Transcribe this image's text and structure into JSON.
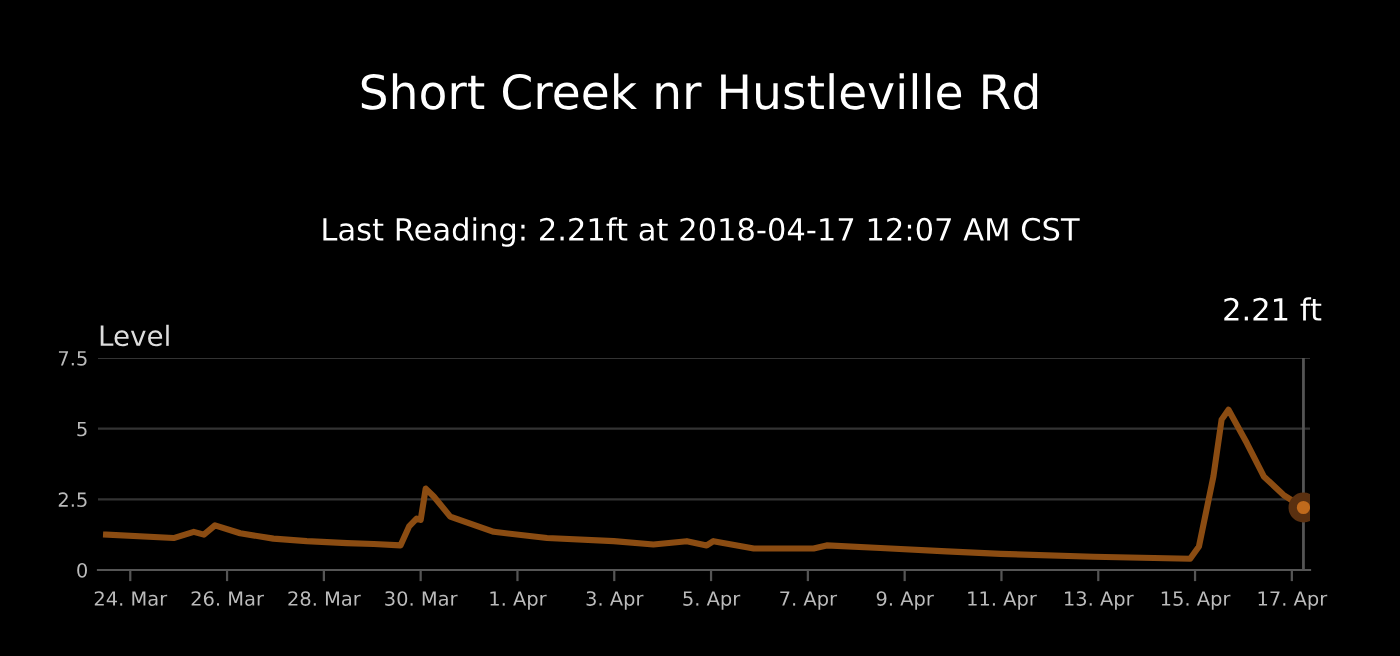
{
  "chart_data": {
    "type": "line",
    "title": "Short Creek nr Hustleville Rd",
    "subtitle": "Last Reading: 2.21ft at 2018-04-17 12:07 AM CST",
    "ylabel": "Level",
    "series": [
      {
        "color": "#8b4c12",
        "x": [
          "2018-03-23T12:00",
          "2018-03-24T21:30",
          "2018-03-25T07:30",
          "2018-03-25T12:30",
          "2018-03-25T18:00",
          "2018-03-26T06:30",
          "2018-03-26T23:00",
          "2018-03-27T15:30",
          "2018-03-28T11:30",
          "2018-03-29T00:45",
          "2018-03-29T14:00",
          "2018-03-29T18:15",
          "2018-03-29T22:00",
          "2018-03-30T00:00",
          "2018-03-30T02:30",
          "2018-03-30T06:30",
          "2018-03-30T14:40",
          "2018-03-31T12:15",
          "2018-04-01T14:40",
          "2018-04-02T23:45",
          "2018-04-03T19:25",
          "2018-04-04T12:00",
          "2018-04-04T21:50",
          "2018-04-05T01:10",
          "2018-04-05T21:10",
          "2018-04-07T02:50",
          "2018-04-07T09:20",
          "2018-04-08T12:00",
          "2018-04-09T20:50",
          "2018-04-10T23:30",
          "2018-04-12T21:35",
          "2018-04-14T21:35",
          "2018-04-15T01:55",
          "2018-04-15T09:07",
          "2018-04-15T13:10",
          "2018-04-15T16:35",
          "2018-04-16T01:40",
          "2018-04-16T10:05",
          "2018-04-16T19:55",
          "2018-04-17T05:45"
        ],
        "values": [
          1.25,
          1.13,
          1.35,
          1.25,
          1.58,
          1.3,
          1.11,
          1.02,
          0.95,
          0.92,
          0.87,
          1.54,
          1.82,
          1.77,
          2.88,
          2.6,
          1.89,
          1.35,
          1.13,
          1.02,
          0.9,
          1.02,
          0.87,
          1.02,
          0.76,
          0.76,
          0.87,
          0.78,
          0.66,
          0.57,
          0.47,
          0.4,
          0.83,
          3.31,
          5.32,
          5.67,
          4.49,
          3.31,
          2.65,
          2.21
        ]
      },
      {
        "type": "scatter",
        "marker": "circle",
        "color": "#c06a1c",
        "x": [
          "2018-04-17T05:45"
        ],
        "values": [
          2.21
        ]
      }
    ],
    "xlim": [
      "2018-03-23T08:00",
      "2018-04-17T09:00"
    ],
    "xticks": [
      {
        "value": "2018-03-24",
        "label": "24. Mar"
      },
      {
        "value": "2018-03-26",
        "label": "26. Mar"
      },
      {
        "value": "2018-03-28",
        "label": "28. Mar"
      },
      {
        "value": "2018-03-30",
        "label": "30. Mar"
      },
      {
        "value": "2018-04-01",
        "label": "1. Apr"
      },
      {
        "value": "2018-04-03",
        "label": "3. Apr"
      },
      {
        "value": "2018-04-05",
        "label": "5. Apr"
      },
      {
        "value": "2018-04-07",
        "label": "7. Apr"
      },
      {
        "value": "2018-04-09",
        "label": "9. Apr"
      },
      {
        "value": "2018-04-11",
        "label": "11. Apr"
      },
      {
        "value": "2018-04-13",
        "label": "13. Apr"
      },
      {
        "value": "2018-04-15",
        "label": "15. Apr"
      },
      {
        "value": "2018-04-17",
        "label": "17. Apr"
      }
    ],
    "ylim": [
      0,
      7.5
    ],
    "yticks": [
      0,
      2.5,
      5,
      7.5
    ],
    "grid": "y",
    "line_style": "solid",
    "ref_lines": [
      {
        "axis": "x",
        "value": "2018-04-17T05:45",
        "color": "#555555"
      }
    ],
    "annotations": [
      "2.21 ft"
    ]
  }
}
